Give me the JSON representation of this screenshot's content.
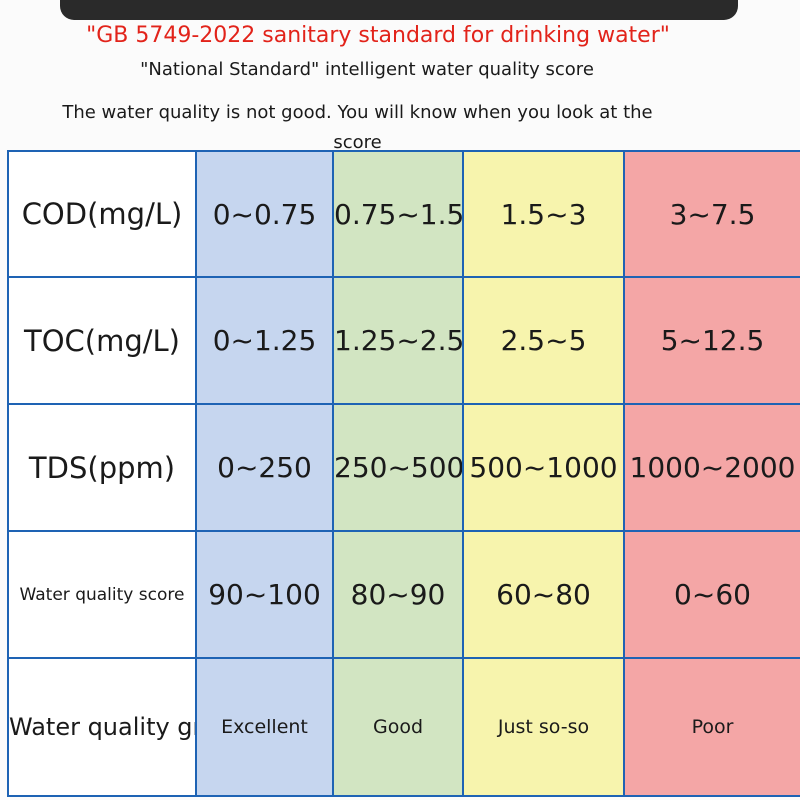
{
  "header": {
    "title": "\"GB 5749-2022 sanitary standard for drinking water\"",
    "subtitle": "\"National Standard\" intelligent water quality score",
    "note": "The water quality is not good. You will know when you look at the score"
  },
  "table": {
    "rows": [
      {
        "label": "COD(mg/L)",
        "values": [
          "0~0.75",
          "0.75~1.5",
          "1.5~3",
          "3~7.5"
        ]
      },
      {
        "label": "TOC(mg/L)",
        "values": [
          "0~1.25",
          "1.25~2.5",
          "2.5~5",
          "5~12.5"
        ]
      },
      {
        "label": "TDS(ppm)",
        "values": [
          "0~250",
          "250~500",
          "500~1000",
          "1000~2000"
        ]
      },
      {
        "label": "Water quality score",
        "values": [
          "90~100",
          "80~90",
          "60~80",
          "0~60"
        ]
      },
      {
        "label": "Water quality grade",
        "values": [
          "Excellent",
          "Good",
          "Just so-so",
          "Poor"
        ]
      }
    ]
  },
  "colors": {
    "title": "#e2231a",
    "border": "#1e63b4",
    "excellent": "#c6d6ef",
    "good": "#d2e5c2",
    "so_so": "#f7f4ad",
    "poor": "#f4a6a6"
  }
}
